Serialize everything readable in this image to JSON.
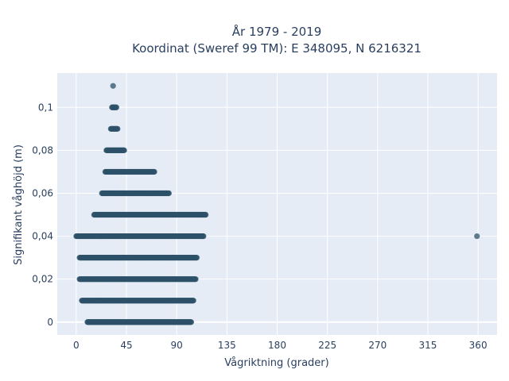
{
  "chart_data": {
    "type": "scatter",
    "title_line1": "År 1979 - 2019",
    "title_line2": "Koordinat (Sweref 99 TM): E 348095, N 6216321",
    "xlabel": "Vågriktning (grader)",
    "ylabel": "Signifikant våghöjd (m)",
    "xlim": [
      -17,
      377
    ],
    "ylim": [
      -0.006,
      0.116
    ],
    "x_ticks": [
      0,
      45,
      90,
      135,
      180,
      225,
      270,
      315,
      360
    ],
    "x_tick_labels": [
      "0",
      "45",
      "90",
      "135",
      "180",
      "225",
      "270",
      "315",
      "360"
    ],
    "y_ticks": [
      0,
      0.02,
      0.04,
      0.06,
      0.08,
      0.1
    ],
    "y_tick_labels": [
      "0",
      "0,02",
      "0,04",
      "0,06",
      "0,08",
      "0,1"
    ],
    "grid": true,
    "marker_color": "#2e5168",
    "plot_background": "#e5ecf6",
    "series": [
      {
        "points_ranges": [
          {
            "y": 0.0,
            "x_from": 10,
            "x_to": 103
          },
          {
            "y": 0.01,
            "x_from": 5,
            "x_to": 105
          },
          {
            "y": 0.02,
            "x_from": 3,
            "x_to": 107
          },
          {
            "y": 0.03,
            "x_from": 3,
            "x_to": 108
          },
          {
            "y": 0.04,
            "x_from": 0,
            "x_to": 114
          },
          {
            "y": 0.05,
            "x_from": 16,
            "x_to": 116
          },
          {
            "y": 0.06,
            "x_from": 23,
            "x_to": 83
          },
          {
            "y": 0.07,
            "x_from": 26,
            "x_to": 70
          },
          {
            "y": 0.08,
            "x_from": 27,
            "x_to": 43
          },
          {
            "y": 0.09,
            "x_from": 31,
            "x_to": 37
          },
          {
            "y": 0.1,
            "x_from": 32,
            "x_to": 36
          }
        ],
        "isolated_points": [
          {
            "x": 33,
            "y": 0.11
          },
          {
            "x": 359,
            "y": 0.04
          }
        ]
      }
    ]
  }
}
